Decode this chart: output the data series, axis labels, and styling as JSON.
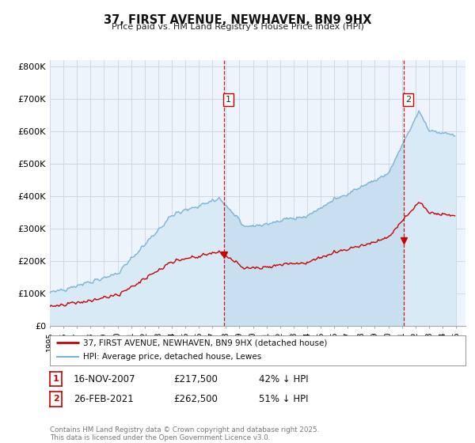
{
  "title": "37, FIRST AVENUE, NEWHAVEN, BN9 9HX",
  "subtitle": "Price paid vs. HM Land Registry's House Price Index (HPI)",
  "hpi_label": "HPI: Average price, detached house, Lewes",
  "price_label": "37, FIRST AVENUE, NEWHAVEN, BN9 9HX (detached house)",
  "hpi_color": "#7ab3d4",
  "hpi_fill_color": "#d8eaf5",
  "price_color": "#cc0000",
  "vline_color": "#cc0000",
  "ann1_x_year": 2007.877,
  "ann2_x_year": 2021.146,
  "ann1_price": 217500,
  "ann2_price": 262500,
  "annotation1": {
    "label": "1",
    "date_str": "16-NOV-2007",
    "price_str": "£217,500",
    "pct_str": "42% ↓ HPI"
  },
  "annotation2": {
    "label": "2",
    "date_str": "26-FEB-2021",
    "price_str": "£262,500",
    "pct_str": "51% ↓ HPI"
  },
  "footer": "Contains HM Land Registry data © Crown copyright and database right 2025.\nThis data is licensed under the Open Government Licence v3.0.",
  "ylim": [
    0,
    820000
  ],
  "xlim_start": 1995.0,
  "xlim_end": 2025.7,
  "yticks": [
    0,
    100000,
    200000,
    300000,
    400000,
    500000,
    600000,
    700000,
    800000
  ],
  "ytick_labels": [
    "£0",
    "£100K",
    "£200K",
    "£300K",
    "£400K",
    "£500K",
    "£600K",
    "£700K",
    "£800K"
  ],
  "xticks": [
    1995,
    1996,
    1997,
    1998,
    1999,
    2000,
    2001,
    2002,
    2003,
    2004,
    2005,
    2006,
    2007,
    2008,
    2009,
    2010,
    2011,
    2012,
    2013,
    2014,
    2015,
    2016,
    2017,
    2018,
    2019,
    2020,
    2021,
    2022,
    2023,
    2024,
    2025
  ],
  "bg_color": "#ffffff",
  "grid_color": "#d0d8e8",
  "plot_bg": "#eef4fb"
}
